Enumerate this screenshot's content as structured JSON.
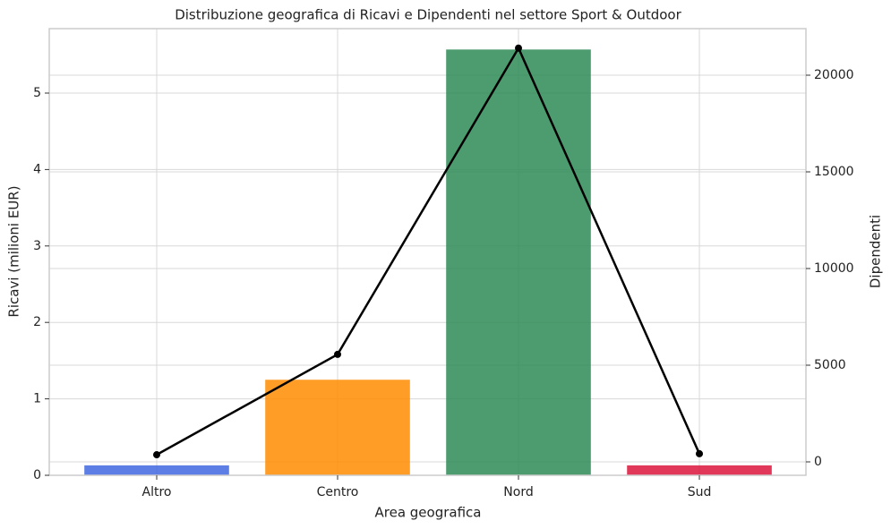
{
  "chart_data": {
    "type": "bar",
    "title": "Distribuzione geografica di Ricavi e Dipendenti nel settore Sport & Outdoor",
    "x_label": "Area geografica",
    "y_label": "Ricavi (milioni EUR)",
    "y2_label": "Dipendenti",
    "categories": [
      "Altro",
      "Centro",
      "Nord",
      "Sud"
    ],
    "series": [
      {
        "type": "bar",
        "colors": [
          "#4169e1",
          "#ff8c00",
          "#2e8b57",
          "#dc143c"
        ],
        "values": [
          0.13,
          1.25,
          5.57,
          0.13
        ]
      },
      {
        "type": "line",
        "axis": "y2",
        "color": "#000000",
        "values": [
          370,
          5560,
          21400,
          420
        ]
      }
    ],
    "ylim": [
      0,
      5.843
    ],
    "yticks": [
      0,
      1,
      2,
      3,
      4,
      5
    ],
    "y2lim": [
      -694,
      22407
    ],
    "y2ticks": [
      0,
      5000,
      10000,
      15000,
      20000
    ],
    "grid": true
  }
}
